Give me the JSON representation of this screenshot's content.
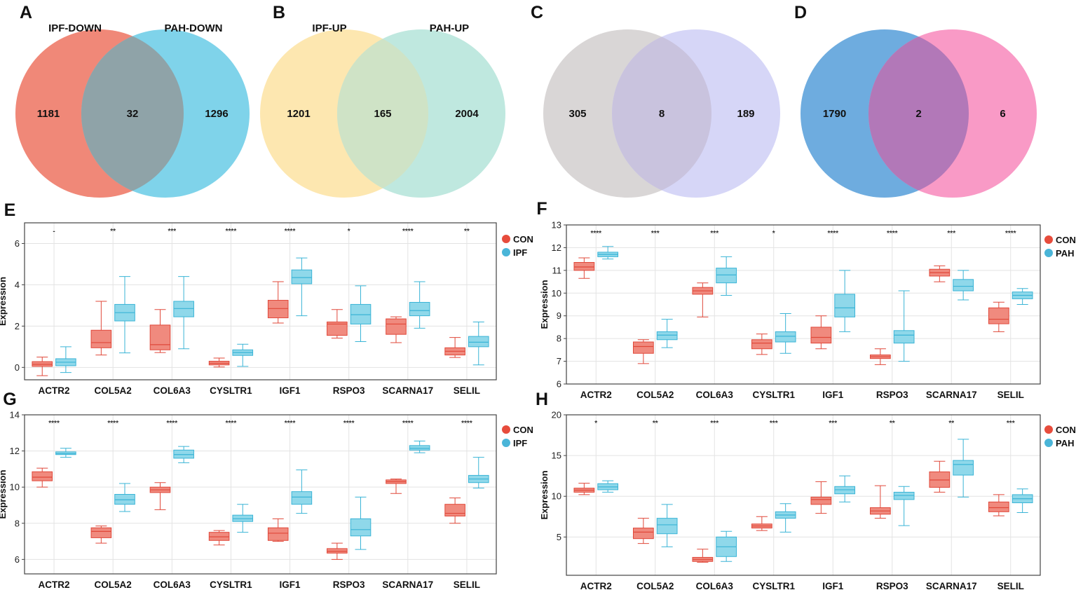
{
  "panel_letters": {
    "A": "A",
    "B": "B",
    "C": "C",
    "D": "D",
    "E": "E",
    "F": "F",
    "G": "G",
    "H": "H"
  },
  "venns": [
    {
      "letter": "A",
      "label_left": "IPF-DOWN",
      "label_right": "PAH-DOWN",
      "left_only": "1181",
      "overlap": "32",
      "right_only": "1296",
      "color_left": "#f08878",
      "color_right": "#7fd3ea",
      "color_overlap": "#8fa3a8"
    },
    {
      "letter": "B",
      "label_left": "IPF-UP",
      "label_right": "PAH-UP",
      "left_only": "1201",
      "overlap": "165",
      "right_only": "2004",
      "color_left": "#fde7b0",
      "color_right": "#bfe8df",
      "color_overlap": "#cfe3c6"
    },
    {
      "letter": "C",
      "label_left": "",
      "label_right": "",
      "left_only": "305",
      "overlap": "8",
      "right_only": "189",
      "color_left": "#d9d6d6",
      "color_right": "#d6d6f7",
      "color_overlap": "#c9c3de"
    },
    {
      "letter": "D",
      "label_left": "",
      "label_right": "",
      "left_only": "1790",
      "overlap": "2",
      "right_only": "6",
      "color_left": "#6eacdf",
      "color_right": "#f99ac6",
      "color_overlap": "#b278b8"
    }
  ],
  "colors": {
    "con": "#f08a7e",
    "con_stroke": "#e0483a",
    "case": "#8fd8ea",
    "case_stroke": "#3ab4d6",
    "legend_con": "#e74c3c",
    "legend_case": "#4ab5d8"
  },
  "chart_data": [
    {
      "letter": "E",
      "type": "box",
      "title": "",
      "xlabel": "",
      "ylabel": "Expression",
      "ylim": [
        -0.6,
        7.0
      ],
      "yticks": [
        0,
        2,
        4,
        6
      ],
      "categories": [
        "ACTR2",
        "COL5A2",
        "COL6A3",
        "CYSLTR1",
        "IGF1",
        "RSPO3",
        "SCARNA17",
        "SELIL"
      ],
      "significance": [
        "-",
        "**",
        "***",
        "****",
        "****",
        "*",
        "****",
        "**"
      ],
      "legend": [
        "CON",
        "IPF"
      ],
      "series": [
        {
          "name": "CON",
          "boxes": [
            [
              -0.4,
              0.05,
              0.15,
              0.28,
              0.5
            ],
            [
              0.6,
              0.95,
              1.2,
              1.8,
              3.2
            ],
            [
              0.72,
              0.85,
              1.1,
              2.05,
              2.8
            ],
            [
              0.02,
              0.12,
              0.2,
              0.3,
              0.45
            ],
            [
              2.15,
              2.4,
              2.85,
              3.25,
              4.15
            ],
            [
              1.42,
              1.55,
              2.1,
              2.2,
              2.8
            ],
            [
              1.2,
              1.6,
              2.1,
              2.35,
              2.45
            ],
            [
              0.48,
              0.6,
              0.78,
              0.95,
              1.45
            ]
          ]
        },
        {
          "name": "IPF",
          "boxes": [
            [
              -0.25,
              0.08,
              0.25,
              0.42,
              1.0
            ],
            [
              0.7,
              2.25,
              2.65,
              3.05,
              4.4
            ],
            [
              0.9,
              2.45,
              2.85,
              3.2,
              4.4
            ],
            [
              0.05,
              0.58,
              0.72,
              0.85,
              1.12
            ],
            [
              2.5,
              4.05,
              4.35,
              4.72,
              5.3
            ],
            [
              1.25,
              2.1,
              2.55,
              3.05,
              3.95
            ],
            [
              1.9,
              2.5,
              2.75,
              3.15,
              4.15
            ],
            [
              0.12,
              1.0,
              1.22,
              1.5,
              2.2
            ]
          ]
        }
      ]
    },
    {
      "letter": "F",
      "type": "box",
      "title": "",
      "xlabel": "",
      "ylabel": "Expression",
      "ylim": [
        6,
        13
      ],
      "yticks": [
        6,
        7,
        8,
        9,
        10,
        11,
        12,
        13
      ],
      "categories": [
        "ACTR2",
        "COL5A2",
        "COL6A3",
        "CYSLTR1",
        "IGF1",
        "RSPO3",
        "SCARNA17",
        "SELIL"
      ],
      "significance": [
        "****",
        "***",
        "***",
        "*",
        "****",
        "****",
        "***",
        "****"
      ],
      "legend": [
        "CON",
        "PAH"
      ],
      "series": [
        {
          "name": "CON",
          "boxes": [
            [
              10.65,
              11.0,
              11.15,
              11.35,
              11.55
            ],
            [
              6.9,
              7.35,
              7.65,
              7.85,
              7.95
            ],
            [
              8.95,
              9.95,
              10.1,
              10.25,
              10.45
            ],
            [
              7.3,
              7.55,
              7.8,
              7.95,
              8.2
            ],
            [
              7.55,
              7.8,
              8.05,
              8.5,
              9.0
            ],
            [
              6.85,
              7.12,
              7.2,
              7.28,
              7.55
            ],
            [
              10.5,
              10.75,
              10.9,
              11.05,
              11.2
            ],
            [
              8.3,
              8.65,
              8.85,
              9.35,
              9.6
            ]
          ]
        },
        {
          "name": "PAH",
          "boxes": [
            [
              11.5,
              11.6,
              11.7,
              11.8,
              12.05
            ],
            [
              7.6,
              7.95,
              8.15,
              8.3,
              8.85
            ],
            [
              9.9,
              10.45,
              10.8,
              11.1,
              11.6
            ],
            [
              7.35,
              7.85,
              8.1,
              8.3,
              9.1
            ],
            [
              8.3,
              8.95,
              9.35,
              9.95,
              11.0
            ],
            [
              7.0,
              7.8,
              8.15,
              8.35,
              10.1
            ],
            [
              9.7,
              10.1,
              10.3,
              10.6,
              11.0
            ],
            [
              9.5,
              9.75,
              9.9,
              10.05,
              10.2
            ]
          ]
        }
      ]
    },
    {
      "letter": "G",
      "type": "box",
      "title": "",
      "xlabel": "",
      "ylabel": "Expression",
      "ylim": [
        5.2,
        14
      ],
      "yticks": [
        6,
        8,
        10,
        12,
        14
      ],
      "categories": [
        "ACTR2",
        "COL5A2",
        "COL6A3",
        "CYSLTR1",
        "IGF1",
        "RSPO3",
        "SCARNA17",
        "SELIL"
      ],
      "significance": [
        "****",
        "****",
        "****",
        "****",
        "****",
        "****",
        "****",
        "****"
      ],
      "legend": [
        "CON",
        "IPF"
      ],
      "series": [
        {
          "name": "CON",
          "boxes": [
            [
              10.0,
              10.35,
              10.55,
              10.85,
              11.05
            ],
            [
              6.9,
              7.2,
              7.55,
              7.75,
              7.85
            ],
            [
              8.75,
              9.7,
              9.85,
              10.0,
              10.25
            ],
            [
              6.8,
              7.05,
              7.25,
              7.5,
              7.6
            ],
            [
              7.0,
              7.05,
              7.45,
              7.75,
              8.25
            ],
            [
              6.0,
              6.35,
              6.45,
              6.6,
              6.9
            ],
            [
              9.65,
              10.2,
              10.3,
              10.4,
              10.45
            ],
            [
              8.0,
              8.4,
              8.55,
              9.05,
              9.4
            ]
          ]
        },
        {
          "name": "IPF",
          "boxes": [
            [
              11.65,
              11.8,
              11.85,
              11.95,
              12.15
            ],
            [
              8.65,
              9.05,
              9.3,
              9.6,
              10.2
            ],
            [
              11.35,
              11.6,
              11.8,
              12.05,
              12.25
            ],
            [
              7.5,
              8.1,
              8.25,
              8.45,
              9.05
            ],
            [
              8.55,
              9.05,
              9.45,
              9.75,
              10.95
            ],
            [
              6.55,
              7.3,
              7.65,
              8.25,
              9.45
            ],
            [
              11.9,
              12.05,
              12.15,
              12.3,
              12.55
            ],
            [
              9.95,
              10.25,
              10.45,
              10.65,
              11.65
            ]
          ]
        }
      ]
    },
    {
      "letter": "H",
      "type": "box",
      "title": "",
      "xlabel": "",
      "ylabel": "Expression",
      "ylim": [
        0.3,
        20
      ],
      "yticks": [
        5,
        10,
        15,
        20
      ],
      "categories": [
        "ACTR2",
        "COL5A2",
        "COL6A3",
        "CYSLTR1",
        "IGF1",
        "RSPO3",
        "SCARNA17",
        "SELIL"
      ],
      "significance": [
        "*",
        "**",
        "***",
        "***",
        "***",
        "**",
        "**",
        "***"
      ],
      "legend": [
        "CON",
        "PAH"
      ],
      "series": [
        {
          "name": "CON",
          "boxes": [
            [
              10.2,
              10.5,
              10.75,
              11.0,
              11.6
            ],
            [
              4.2,
              4.8,
              5.6,
              6.1,
              7.3
            ],
            [
              1.9,
              2.0,
              2.25,
              2.5,
              3.5
            ],
            [
              5.8,
              6.1,
              6.35,
              6.6,
              7.5
            ],
            [
              7.9,
              9.0,
              9.6,
              9.9,
              11.8
            ],
            [
              7.3,
              7.8,
              8.2,
              8.6,
              11.3
            ],
            [
              10.5,
              11.1,
              12.0,
              13.0,
              14.3
            ],
            [
              7.6,
              8.1,
              8.6,
              9.3,
              10.2
            ]
          ]
        },
        {
          "name": "PAH",
          "boxes": [
            [
              10.5,
              10.8,
              11.15,
              11.55,
              11.9
            ],
            [
              3.8,
              5.4,
              6.5,
              7.3,
              9.0
            ],
            [
              2.0,
              2.6,
              3.8,
              5.0,
              5.7
            ],
            [
              5.6,
              7.3,
              7.7,
              8.1,
              9.1
            ],
            [
              9.3,
              10.3,
              10.8,
              11.2,
              12.5
            ],
            [
              6.4,
              9.6,
              10.1,
              10.5,
              11.2
            ],
            [
              9.9,
              12.6,
              13.9,
              14.4,
              17.0
            ],
            [
              8.0,
              9.2,
              9.7,
              10.2,
              10.9
            ]
          ]
        }
      ]
    }
  ]
}
